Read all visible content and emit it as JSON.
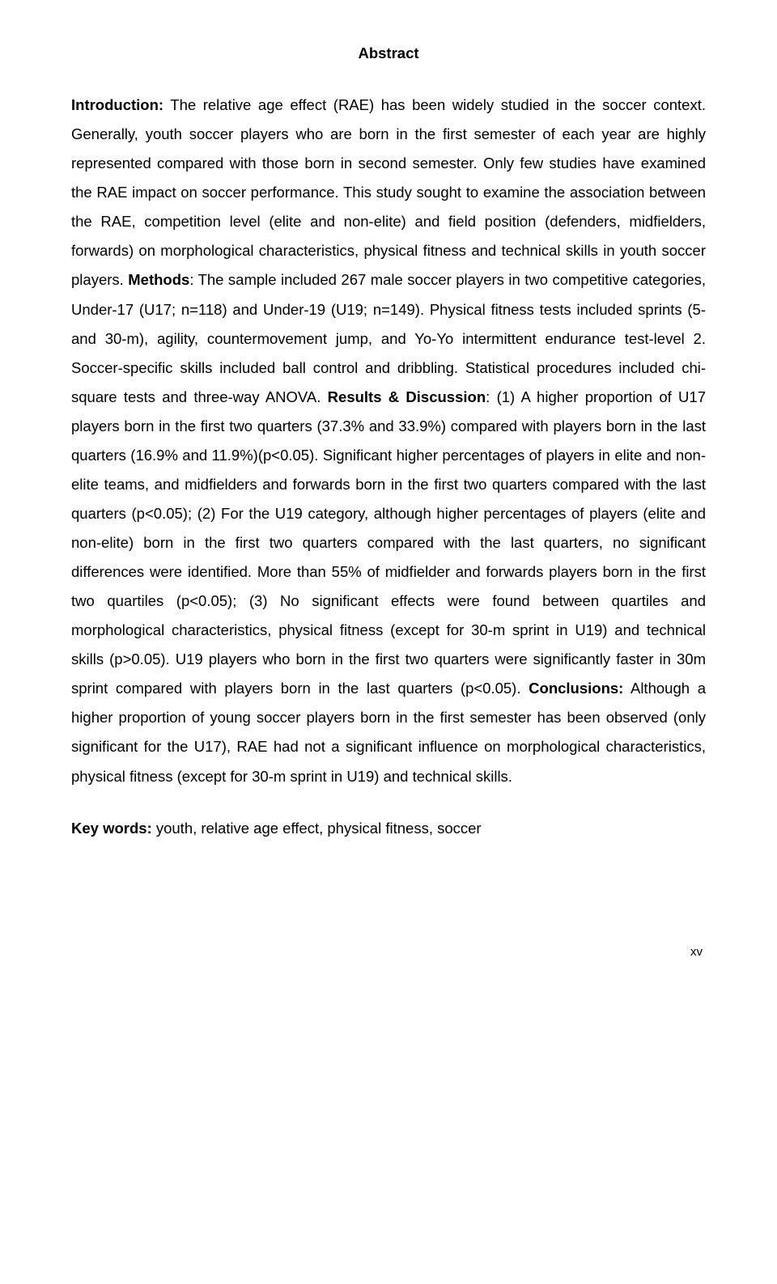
{
  "title": "Abstract",
  "sections": {
    "intro_label": "Introduction:",
    "intro_text": " The relative age effect (RAE) has been widely studied in the soccer context. Generally, youth soccer players who are born in the first semester of each year are highly represented compared with those born in second semester. Only few studies have examined the RAE impact on soccer performance. This study sought to examine the association between the RAE, competition level (elite and non-elite) and field position (defenders, midfielders, forwards) on morphological characteristics, physical fitness and technical skills in youth soccer players. ",
    "methods_label": "Methods",
    "methods_text": ": The sample included 267 male soccer players in two competitive categories, Under-17 (U17; n=118) and Under-19 (U19; n=149). Physical fitness tests included sprints (5- and 30-m), agility, countermovement jump, and Yo-Yo intermittent endurance test-level 2. Soccer-specific skills included ball control and dribbling. Statistical procedures included chi-square tests and three-way ANOVA. ",
    "results_label": "Results & Discussion",
    "results_text": ": (1) A higher proportion of U17 players born in the first two quarters (37.3% and 33.9%) compared with players born in the last quarters (16.9% and 11.9%)(p<0.05). Significant higher percentages of players in elite and non-elite teams, and midfielders and forwards born in the first two quarters compared with the last quarters (p<0.05); (2) For the U19 category, although higher percentages of players (elite and non-elite) born in the first two quarters compared with the last quarters, no significant differences were identified. More than 55% of midfielder and forwards players born in the first two quartiles (p<0.05); (3) No significant effects were found between quartiles and morphological characteristics, physical fitness (except for 30-m sprint in U19) and technical skills (p>0.05). U19 players who born in the first two quarters were significantly faster in 30m sprint compared with players born in the last quarters (p<0.05). ",
    "conclusions_label": "Conclusions:",
    "conclusions_text": " Although a higher proportion of young soccer players born in the first semester has been observed (only significant for the U17), RAE had not a significant influence on morphological characteristics, physical fitness (except for 30-m sprint in U19) and technical skills."
  },
  "keywords": {
    "label": "Key words:",
    "text": " youth, relative age effect, physical fitness, soccer"
  },
  "page_number": "xv"
}
